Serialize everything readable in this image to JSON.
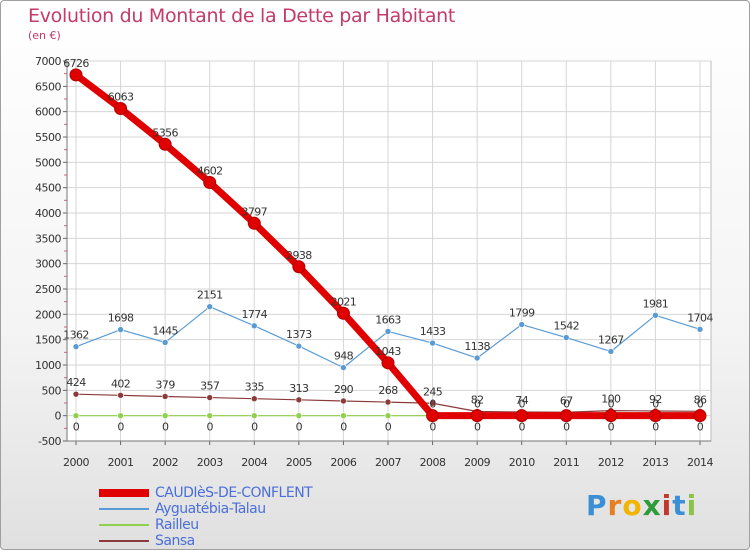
{
  "title": "Evolution du Montant de la Dette par Habitant",
  "subtitle": "(en €)",
  "logo": {
    "letters": [
      "P",
      "r",
      "o",
      "x",
      "i",
      "t",
      "i"
    ],
    "colors": [
      "#3c8fd4",
      "#e67e22",
      "#f2b400",
      "#2e9c3a",
      "#c0392b",
      "#3c8fd4",
      "#8bc34a"
    ]
  },
  "chart_data": {
    "type": "line",
    "x": [
      "2000",
      "2001",
      "2002",
      "2003",
      "2004",
      "2005",
      "2006",
      "2007",
      "2008",
      "2009",
      "2010",
      "2011",
      "2012",
      "2013",
      "2014"
    ],
    "ylim": [
      -500,
      7000
    ],
    "yticks": [
      "-500",
      "0",
      "500",
      "1000",
      "1500",
      "2000",
      "2500",
      "3000",
      "3500",
      "4000",
      "4500",
      "5000",
      "5500",
      "6000",
      "6500",
      "7000"
    ],
    "grid": true,
    "legend_position": "bottom-left",
    "series": [
      {
        "name": "CAUDIèS-DE-CONFLENT",
        "color": "#e00000",
        "values": [
          6726,
          6063,
          5356,
          4602,
          3797,
          2938,
          2021,
          1043,
          0,
          0,
          0,
          0,
          0,
          0,
          0
        ],
        "labels": [
          "6726",
          "6063",
          "5356",
          "4602",
          "3797",
          "2938",
          "2021",
          "1043",
          "0",
          "0",
          "0",
          "0",
          "0",
          "0",
          "0"
        ]
      },
      {
        "name": "Ayguatébia-Talau",
        "color": "#5b9bd5",
        "values": [
          1362,
          1698,
          1445,
          2151,
          1774,
          1373,
          948,
          1663,
          1433,
          1138,
          1799,
          1542,
          1267,
          1981,
          1704
        ],
        "labels": [
          "1362",
          "1698",
          "1445",
          "2151",
          "1774",
          "1373",
          "948",
          "1663",
          "1433",
          "1138",
          "1799",
          "1542",
          "1267",
          "1981",
          "1704"
        ]
      },
      {
        "name": "Railleu",
        "color": "#8fd14f",
        "values": [
          0,
          0,
          0,
          0,
          0,
          0,
          0,
          0,
          0,
          0,
          0,
          0,
          0,
          0,
          0
        ],
        "labels": [
          "0",
          "0",
          "0",
          "0",
          "0",
          "0",
          "0",
          "0",
          "0",
          "0",
          "0",
          "0",
          "0",
          "0",
          "0"
        ]
      },
      {
        "name": "Sansa",
        "color": "#8b3a3a",
        "values": [
          424,
          402,
          379,
          357,
          335,
          313,
          290,
          268,
          245,
          82,
          74,
          67,
          100,
          92,
          86
        ],
        "labels": [
          "424",
          "402",
          "379",
          "357",
          "335",
          "313",
          "290",
          "268",
          "245",
          "82",
          "74",
          "67",
          "100",
          "92",
          "86"
        ]
      }
    ]
  }
}
